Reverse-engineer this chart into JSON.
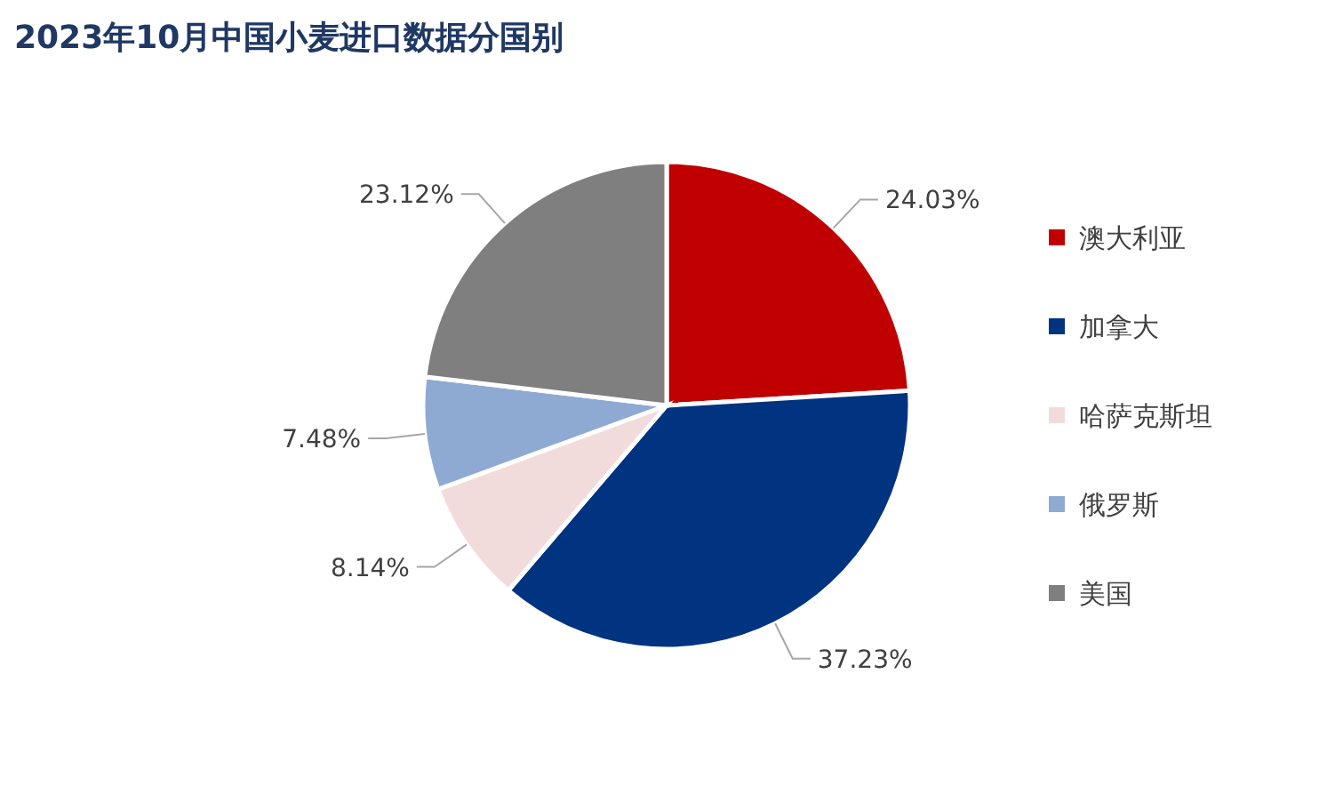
{
  "chart_data": {
    "type": "pie",
    "title": "2023年10月中国小麦进口数据分国别",
    "categories": [
      "澳大利亚",
      "加拿大",
      "哈萨克斯坦",
      "俄罗斯",
      "美国"
    ],
    "values": [
      24.03,
      37.23,
      8.14,
      7.48,
      23.12
    ],
    "colors": [
      "#c00000",
      "#003380",
      "#f2dcdb",
      "#8eaad3",
      "#7f7f7f"
    ],
    "value_labels": [
      "24.03%",
      "37.23%",
      "8.14%",
      "7.48%",
      "23.12%"
    ],
    "legend": "right"
  }
}
